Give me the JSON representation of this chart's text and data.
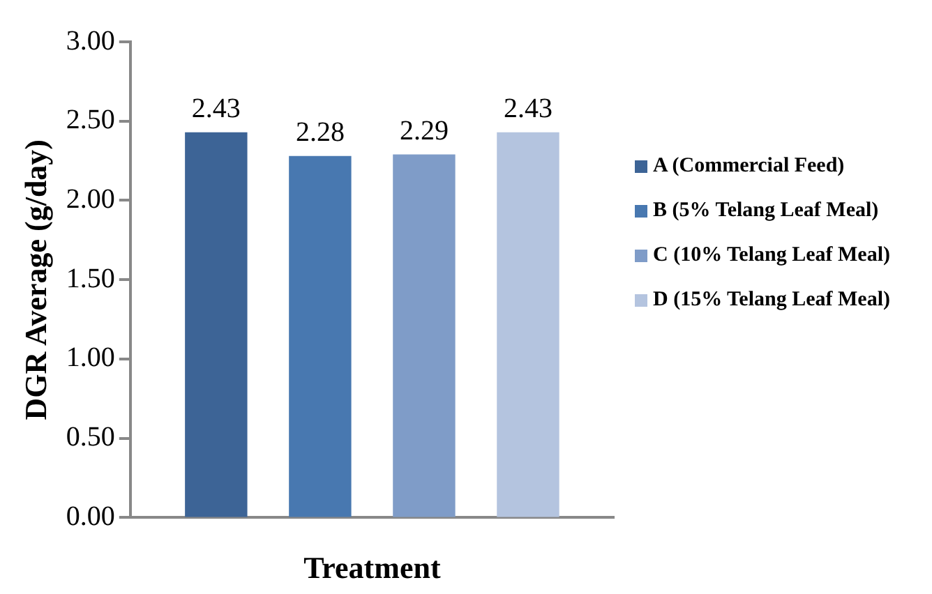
{
  "chart_data": {
    "type": "bar",
    "ylabel": "DGR Average (g/day)",
    "xlabel": "Treatment",
    "categories": [
      null
    ],
    "series": [
      {
        "name": "A (Commercial Feed)",
        "color": "#3d6496",
        "values": [
          2.43
        ]
      },
      {
        "name": "B (5% Telang Leaf Meal)",
        "color": "#4878b0",
        "values": [
          2.28
        ]
      },
      {
        "name": "C (10% Telang Leaf Meal)",
        "color": "#7f9cc8",
        "values": [
          2.29
        ]
      },
      {
        "name": "D (15% Telang Leaf Meal)",
        "color": "#b4c4df",
        "values": [
          2.43
        ]
      }
    ],
    "ylim": [
      0,
      3
    ],
    "yticks": [
      {
        "value": 0,
        "label": "0.00"
      },
      {
        "value": 0.5,
        "label": "0.50"
      },
      {
        "value": 1,
        "label": "1.00"
      },
      {
        "value": 1.5,
        "label": "1.50"
      },
      {
        "value": 2,
        "label": "2.00"
      },
      {
        "value": 2.5,
        "label": "2.50"
      },
      {
        "value": 3,
        "label": "3.00"
      }
    ],
    "data_labels": true,
    "legend": "right",
    "grid": false
  }
}
